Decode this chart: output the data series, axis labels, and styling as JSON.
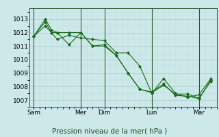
{
  "background_color": "#cce8e8",
  "grid_color_major": "#aacccc",
  "grid_color_minor": "#bbdddd",
  "line_color": "#1a6b1a",
  "marker_color": "#1a6b1a",
  "ylabel_ticks": [
    1007,
    1008,
    1009,
    1010,
    1011,
    1012,
    1013
  ],
  "ylim": [
    1006.5,
    1013.8
  ],
  "xlabel": "Pression niveau de la mer( hPa )",
  "day_labels": [
    "Sam",
    "Mer",
    "Dim",
    "Lun",
    "Mar"
  ],
  "day_positions": [
    0,
    48,
    72,
    120,
    168
  ],
  "series": [
    [
      0,
      1011.7,
      12,
      1012.8,
      18,
      1012.0,
      24,
      1012.0,
      36,
      1011.1,
      48,
      1012.0,
      60,
      1011.0,
      72,
      1011.1,
      84,
      1010.3,
      96,
      1009.0,
      108,
      1007.8,
      120,
      1007.55,
      132,
      1008.1,
      144,
      1007.45,
      156,
      1007.45,
      168,
      1007.15,
      180,
      1008.4
    ],
    [
      0,
      1011.7,
      12,
      1013.0,
      18,
      1012.2,
      24,
      1012.0,
      36,
      1012.0,
      48,
      1012.0,
      60,
      1011.0,
      72,
      1011.0,
      84,
      1010.3,
      96,
      1009.0,
      108,
      1007.8,
      120,
      1007.6,
      132,
      1008.2,
      144,
      1007.35,
      156,
      1007.3,
      168,
      1007.1,
      180,
      1008.5
    ],
    [
      0,
      1011.7,
      12,
      1012.5,
      24,
      1011.5,
      36,
      1011.8,
      48,
      1011.6,
      60,
      1011.5,
      72,
      1011.4,
      84,
      1010.5,
      96,
      1010.5,
      108,
      1009.5,
      120,
      1007.5,
      132,
      1008.6,
      144,
      1007.5,
      156,
      1007.2,
      168,
      1007.4,
      180,
      1008.6
    ]
  ],
  "tick_fontsize": 6.5,
  "xlabel_fontsize": 7.5,
  "xlim": [
    -4,
    186
  ]
}
